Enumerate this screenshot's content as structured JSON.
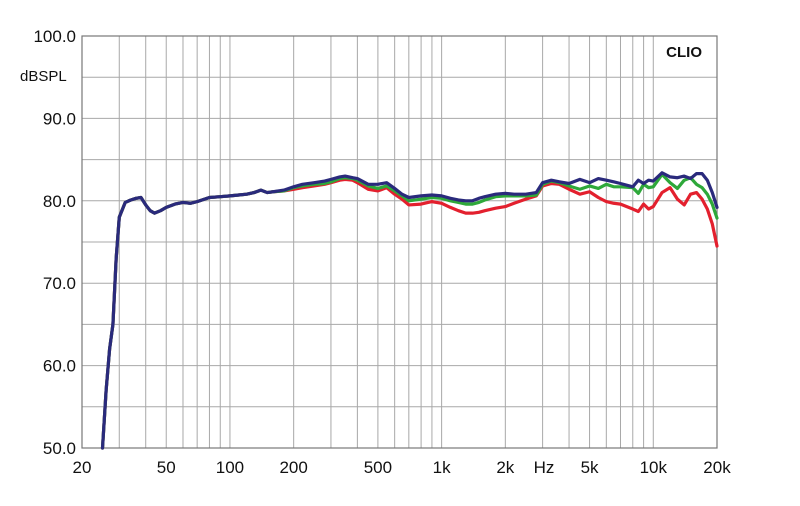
{
  "chart_data": {
    "type": "line",
    "brand": "CLIO",
    "ylabel": "dBSPL",
    "xlabel": "Hz",
    "x_scale": "log",
    "xlim": [
      20,
      20000
    ],
    "ylim": [
      50,
      100
    ],
    "grid": true,
    "y_ticks": [
      {
        "value": 100,
        "label": "100.0"
      },
      {
        "value": 90,
        "label": "90.0"
      },
      {
        "value": 80,
        "label": "80.0"
      },
      {
        "value": 70,
        "label": "70.0"
      },
      {
        "value": 60,
        "label": "60.0"
      },
      {
        "value": 50,
        "label": "50.0"
      }
    ],
    "x_ticks": [
      {
        "value": 20,
        "label": "20"
      },
      {
        "value": 50,
        "label": "50"
      },
      {
        "value": 100,
        "label": "100"
      },
      {
        "value": 200,
        "label": "200"
      },
      {
        "value": 500,
        "label": "500"
      },
      {
        "value": 1000,
        "label": "1k"
      },
      {
        "value": 2000,
        "label": "2k"
      },
      {
        "value": 5000,
        "label": "5k"
      },
      {
        "value": 10000,
        "label": "10k"
      },
      {
        "value": 20000,
        "label": "20k"
      }
    ],
    "series": [
      {
        "color": "#e3202e",
        "x": [
          25,
          26,
          27,
          28,
          29,
          30,
          32,
          34,
          36,
          38,
          40,
          42,
          44,
          47,
          50,
          55,
          60,
          65,
          70,
          80,
          90,
          100,
          110,
          120,
          130,
          140,
          150,
          160,
          180,
          200,
          220,
          250,
          280,
          300,
          330,
          350,
          380,
          400,
          450,
          500,
          550,
          600,
          650,
          700,
          800,
          900,
          1000,
          1100,
          1200,
          1300,
          1400,
          1500,
          1600,
          1800,
          2000,
          2200,
          2500,
          2800,
          3000,
          3300,
          3600,
          4000,
          4500,
          5000,
          5500,
          6000,
          6500,
          7000,
          8000,
          8500,
          9000,
          9500,
          10000,
          11000,
          12000,
          13000,
          14000,
          15000,
          16000,
          17000,
          18000,
          19000,
          20000
        ],
        "y": [
          50,
          57,
          62,
          65,
          73,
          78,
          79.8,
          80.1,
          80.3,
          80.4,
          79.5,
          78.8,
          78.5,
          78.8,
          79.2,
          79.6,
          79.8,
          79.7,
          79.9,
          80.4,
          80.5,
          80.6,
          80.7,
          80.8,
          81,
          81.3,
          81,
          81.1,
          81.2,
          81.4,
          81.6,
          81.8,
          82,
          82.2,
          82.5,
          82.6,
          82.5,
          82.2,
          81.4,
          81.2,
          81.6,
          80.8,
          80.2,
          79.5,
          79.6,
          79.9,
          79.7,
          79.2,
          78.8,
          78.5,
          78.5,
          78.6,
          78.8,
          79.1,
          79.3,
          79.7,
          80.2,
          80.6,
          81.8,
          82.1,
          82,
          81.4,
          80.8,
          81.1,
          80.4,
          79.9,
          79.7,
          79.6,
          79,
          78.7,
          79.6,
          79,
          79.3,
          81,
          81.6,
          80.2,
          79.5,
          80.8,
          81,
          80.2,
          79,
          77.2,
          74.5
        ]
      },
      {
        "color": "#2ea83a",
        "x": [
          25,
          26,
          27,
          28,
          29,
          30,
          32,
          34,
          36,
          38,
          40,
          42,
          44,
          47,
          50,
          55,
          60,
          65,
          70,
          80,
          90,
          100,
          110,
          120,
          130,
          140,
          150,
          160,
          180,
          200,
          220,
          250,
          280,
          300,
          330,
          350,
          380,
          400,
          450,
          500,
          550,
          600,
          650,
          700,
          800,
          900,
          1000,
          1100,
          1200,
          1300,
          1400,
          1500,
          1600,
          1800,
          2000,
          2200,
          2500,
          2800,
          3000,
          3300,
          3600,
          4000,
          4500,
          5000,
          5500,
          6000,
          6500,
          7000,
          8000,
          8500,
          9000,
          9500,
          10000,
          11000,
          12000,
          13000,
          14000,
          15000,
          16000,
          17000,
          18000,
          19000,
          20000
        ],
        "y": [
          50,
          57,
          62,
          65,
          73,
          78,
          79.8,
          80.1,
          80.3,
          80.4,
          79.5,
          78.8,
          78.5,
          78.8,
          79.2,
          79.6,
          79.8,
          79.7,
          79.9,
          80.4,
          80.5,
          80.6,
          80.7,
          80.8,
          81,
          81.3,
          81,
          81.1,
          81.2,
          81.6,
          81.8,
          82,
          82.1,
          82.3,
          82.7,
          82.8,
          82.7,
          82.5,
          81.8,
          81.5,
          81.8,
          81.2,
          80.6,
          80,
          80.2,
          80.4,
          80.3,
          80,
          79.8,
          79.6,
          79.6,
          79.8,
          80.1,
          80.5,
          80.6,
          80.6,
          80.6,
          80.7,
          82,
          82.4,
          82.2,
          81.8,
          81.4,
          81.8,
          81.5,
          82,
          81.7,
          81.7,
          81.6,
          80.9,
          82,
          81.6,
          81.7,
          83.2,
          82.2,
          81.5,
          82.5,
          82.8,
          82,
          81.6,
          80.8,
          79.6,
          77.9
        ]
      },
      {
        "color": "#2a2a7c",
        "x": [
          25,
          26,
          27,
          28,
          29,
          30,
          32,
          34,
          36,
          38,
          40,
          42,
          44,
          47,
          50,
          55,
          60,
          65,
          70,
          80,
          90,
          100,
          110,
          120,
          130,
          140,
          150,
          160,
          180,
          200,
          220,
          250,
          280,
          300,
          330,
          350,
          380,
          400,
          450,
          500,
          550,
          600,
          650,
          700,
          800,
          900,
          1000,
          1100,
          1200,
          1300,
          1400,
          1500,
          1600,
          1800,
          2000,
          2200,
          2500,
          2800,
          3000,
          3300,
          3600,
          4000,
          4500,
          5000,
          5500,
          6000,
          6500,
          7000,
          8000,
          8500,
          9000,
          9500,
          10000,
          11000,
          12000,
          13000,
          14000,
          15000,
          16000,
          17000,
          18000,
          19000,
          20000
        ],
        "y": [
          50,
          57,
          62,
          65,
          73,
          78,
          79.8,
          80.1,
          80.3,
          80.4,
          79.5,
          78.8,
          78.5,
          78.8,
          79.2,
          79.6,
          79.8,
          79.7,
          79.9,
          80.4,
          80.5,
          80.6,
          80.7,
          80.8,
          81,
          81.3,
          81,
          81.1,
          81.3,
          81.7,
          82,
          82.2,
          82.4,
          82.6,
          82.9,
          83,
          82.8,
          82.7,
          82,
          82,
          82.2,
          81.5,
          80.8,
          80.4,
          80.6,
          80.7,
          80.6,
          80.3,
          80.1,
          80,
          80,
          80.3,
          80.5,
          80.8,
          80.9,
          80.8,
          80.8,
          81,
          82.2,
          82.5,
          82.3,
          82.1,
          82.6,
          82.2,
          82.7,
          82.5,
          82.3,
          82.1,
          81.7,
          82.5,
          82.1,
          82.5,
          82.4,
          83.4,
          82.9,
          82.8,
          83,
          82.7,
          83.3,
          83.3,
          82.5,
          81,
          79.2
        ]
      }
    ]
  }
}
